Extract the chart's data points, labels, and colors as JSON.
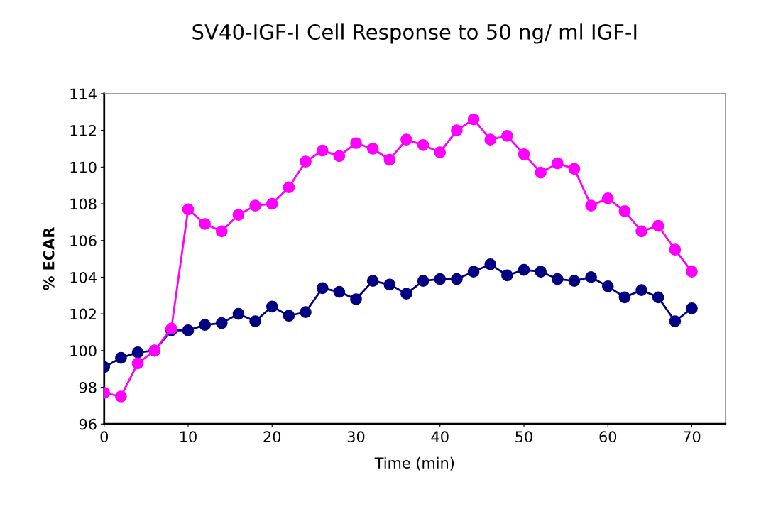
{
  "chart_data": {
    "type": "line",
    "title": "SV40-IGF-I Cell Response to 50 ng/ ml IGF-I",
    "xlabel": "Time (min)",
    "ylabel": "% ECAR",
    "x": [
      0,
      2,
      4,
      6,
      8,
      10,
      12,
      14,
      16,
      18,
      20,
      22,
      24,
      26,
      28,
      30,
      32,
      34,
      36,
      38,
      40,
      42,
      44,
      46,
      48,
      50,
      52,
      54,
      56,
      58,
      60,
      62,
      64,
      66,
      68,
      70
    ],
    "series": [
      {
        "color": "#ff00ff",
        "values": [
          97.7,
          97.5,
          99.3,
          100.0,
          101.2,
          107.7,
          106.9,
          106.5,
          107.4,
          107.9,
          108.0,
          108.9,
          110.3,
          110.9,
          110.6,
          111.3,
          111.0,
          110.4,
          111.5,
          111.2,
          110.8,
          112.0,
          112.6,
          111.5,
          111.7,
          110.7,
          109.7,
          110.2,
          109.9,
          107.9,
          108.3,
          107.6,
          106.5,
          106.8,
          105.5,
          104.3
        ]
      },
      {
        "color": "#000080",
        "values": [
          99.1,
          99.6,
          99.9,
          100.0,
          101.1,
          101.1,
          101.4,
          101.5,
          102.0,
          101.6,
          102.4,
          101.9,
          102.1,
          103.4,
          103.2,
          102.8,
          103.8,
          103.6,
          103.1,
          103.8,
          103.9,
          103.9,
          104.3,
          104.7,
          104.1,
          104.4,
          104.3,
          103.9,
          103.8,
          104.0,
          103.5,
          102.9,
          103.3,
          102.9,
          101.6,
          102.3
        ]
      }
    ],
    "xlim": [
      0,
      74
    ],
    "xticks": [
      0,
      10,
      20,
      30,
      40,
      50,
      60,
      70
    ],
    "ylim": [
      96,
      114
    ],
    "yticks": [
      96,
      98,
      100,
      102,
      104,
      106,
      108,
      110,
      112,
      114
    ],
    "grid": false,
    "legend": false,
    "marker": "circle",
    "line_style": "solid"
  }
}
